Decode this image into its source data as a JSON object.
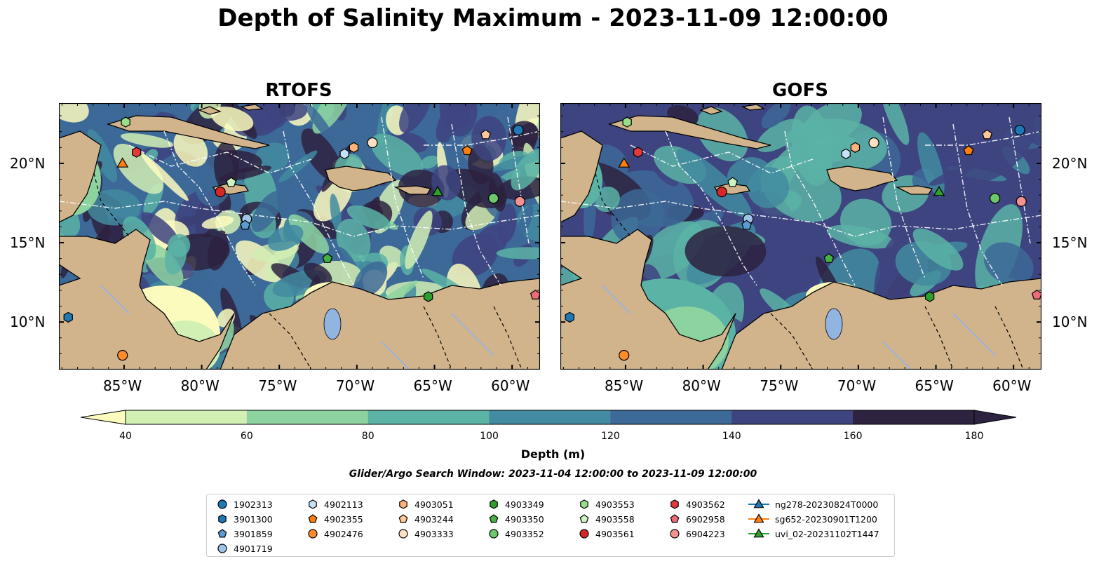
{
  "title": "Depth of Salinity Maximum - 2023-11-09 12:00:00",
  "panels": [
    {
      "title": "RTOFS",
      "model": "rtofs"
    },
    {
      "title": "GOFS",
      "model": "gofs"
    }
  ],
  "axes": {
    "lon_ticks": [
      "85°W",
      "80°W",
      "75°W",
      "70°W",
      "65°W",
      "60°W"
    ],
    "lat_ticks": [
      "20°N",
      "15°N",
      "10°N"
    ]
  },
  "colorbar": {
    "label": "Depth (m)",
    "ticks": [
      "40",
      "60",
      "80",
      "100",
      "120",
      "140",
      "160",
      "180"
    ],
    "colors": [
      "#fbfbbe",
      "#d2efb4",
      "#8dd3a0",
      "#5bb3a6",
      "#428ba0",
      "#3c6997",
      "#3e4480",
      "#2d2240"
    ],
    "extend": "both"
  },
  "search_window": "Glider/Argo Search Window: 2023-11-04 12:00:00 to 2023-11-09 12:00:00",
  "land_color": "#d2b48c",
  "legend": [
    {
      "label": "1902313",
      "color": "#1f77b4",
      "marker": "circle"
    },
    {
      "label": "3901300",
      "color": "#1f77b4",
      "marker": "hexagon"
    },
    {
      "label": "3901859",
      "color": "#5b9bd5",
      "marker": "pentagon"
    },
    {
      "label": "4901719",
      "color": "#9ec5e8",
      "marker": "circle"
    },
    {
      "label": "4902113",
      "color": "#c6e2f7",
      "marker": "hexagon"
    },
    {
      "label": "4902355",
      "color": "#ff7f0e",
      "marker": "pentagon"
    },
    {
      "label": "4902476",
      "color": "#ff8c2a",
      "marker": "circle"
    },
    {
      "label": "4903051",
      "color": "#ffb27a",
      "marker": "hexagon"
    },
    {
      "label": "4903244",
      "color": "#ffc79a",
      "marker": "pentagon"
    },
    {
      "label": "4903333",
      "color": "#ffe0c2",
      "marker": "circle"
    },
    {
      "label": "4903349",
      "color": "#2ca02c",
      "marker": "hexagon"
    },
    {
      "label": "4903350",
      "color": "#45b045",
      "marker": "pentagon"
    },
    {
      "label": "4903352",
      "color": "#6cc86c",
      "marker": "circle"
    },
    {
      "label": "4903553",
      "color": "#98df8a",
      "marker": "hexagon"
    },
    {
      "label": "4903558",
      "color": "#cdf2c4",
      "marker": "pentagon"
    },
    {
      "label": "4903561",
      "color": "#d62728",
      "marker": "circle"
    },
    {
      "label": "4903562",
      "color": "#e03a3a",
      "marker": "hexagon"
    },
    {
      "label": "6902958",
      "color": "#ee6b78",
      "marker": "pentagon"
    },
    {
      "label": "6904223",
      "color": "#f4928f",
      "marker": "circle"
    },
    {
      "label": "ng278-20230824T0000",
      "color": "#1f77b4",
      "marker": "triangle-line"
    },
    {
      "label": "sg652-20230901T1200",
      "color": "#ff7f0e",
      "marker": "triangle-line"
    },
    {
      "label": "uvi_02-20231102T1447",
      "color": "#2ca02c",
      "marker": "triangle-line"
    }
  ]
}
